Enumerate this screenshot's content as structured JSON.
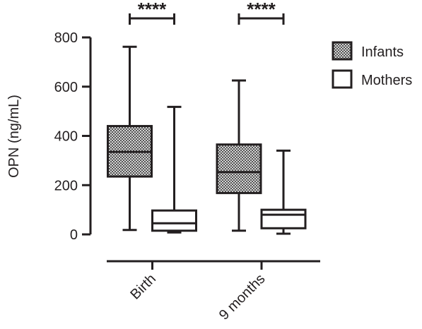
{
  "chart_data": {
    "type": "boxplot",
    "ylabel": "OPN (ng/mL)",
    "ylim": [
      0,
      800
    ],
    "yticks": [
      0,
      200,
      400,
      600,
      800
    ],
    "categories": [
      "Birth",
      "9 months"
    ],
    "legend_position": "top-right",
    "series": [
      {
        "name": "Infants",
        "pattern": "dotted",
        "boxes": [
          {
            "min": 18,
            "q1": 235,
            "median": 335,
            "q3": 440,
            "max": 762
          },
          {
            "min": 15,
            "q1": 168,
            "median": 253,
            "q3": 365,
            "max": 625
          }
        ]
      },
      {
        "name": "Mothers",
        "pattern": "white",
        "boxes": [
          {
            "min": 8,
            "q1": 15,
            "median": 45,
            "q3": 97,
            "max": 518
          },
          {
            "min": 3,
            "q1": 25,
            "median": 80,
            "q3": 100,
            "max": 340
          }
        ]
      }
    ],
    "significance": [
      {
        "category": "Birth",
        "label": "****"
      },
      {
        "category": "9 months",
        "label": "****"
      }
    ],
    "colors": {
      "ink": "#231f20",
      "dot_fill": "#cfcfcf",
      "dot": "#4a4a4a"
    }
  }
}
